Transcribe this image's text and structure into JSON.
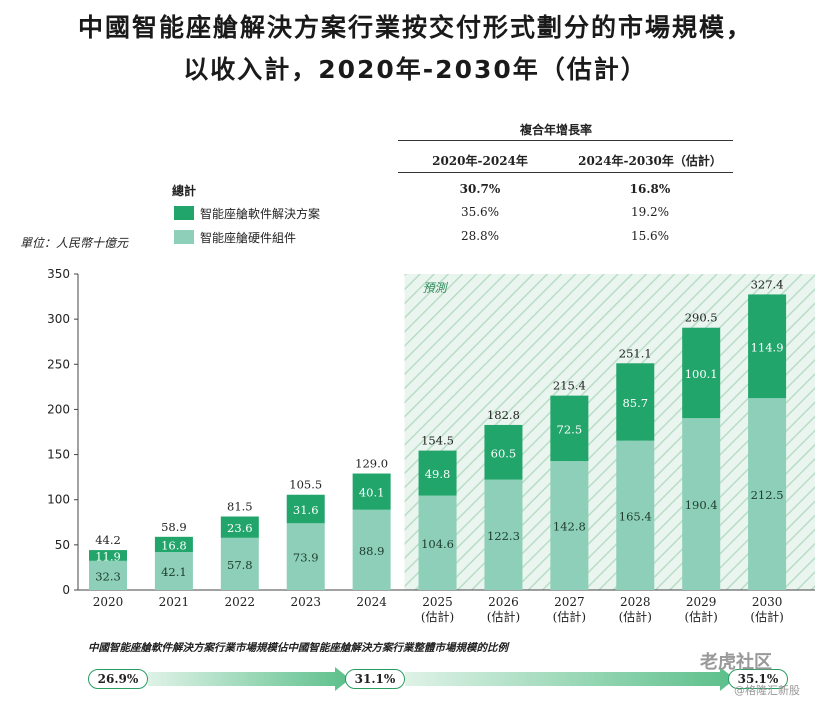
{
  "title_line1": "中國智能座艙解決方案行業按交付形式劃分的市場規模，",
  "title_line2": "以收入計，2020年-2030年（估計）",
  "cagr_table": {
    "header": "複合年增長率",
    "col1": "2020年-2024年",
    "col2": "2024年-2030年（估計）",
    "rows": [
      {
        "label": "總計",
        "v1": "30.7%",
        "v2": "16.8%"
      },
      {
        "label": "智能座艙軟件解決方案",
        "v1": "35.6%",
        "v2": "19.2%"
      },
      {
        "label": "智能座艙硬件組件",
        "v1": "28.8%",
        "v2": "15.6%"
      }
    ]
  },
  "unit_label": "單位：人民幣十億元",
  "forecast_label": "預測",
  "colors": {
    "software": "#21a56b",
    "hardware": "#8dcfb8",
    "forecast_bg": "#e9f5ee",
    "forecast_hatch": "#b9ddc7"
  },
  "chart_data": {
    "type": "bar",
    "stacked": true,
    "categories": [
      "2020",
      "2021",
      "2022",
      "2023",
      "2024",
      "2025\n(估計)",
      "2026\n(估計)",
      "2027\n(估計)",
      "2028\n(估計)",
      "2029\n(估計)",
      "2030\n(估計)"
    ],
    "series": [
      {
        "name": "智能座艙硬件組件",
        "values": [
          32.3,
          42.1,
          57.8,
          73.9,
          88.9,
          104.6,
          122.3,
          142.8,
          165.4,
          190.4,
          212.5
        ]
      },
      {
        "name": "智能座艙軟件解決方案",
        "values": [
          11.9,
          16.8,
          23.6,
          31.6,
          40.1,
          49.8,
          60.5,
          72.5,
          85.7,
          100.1,
          114.9
        ]
      }
    ],
    "totals": [
      44.2,
      58.9,
      81.5,
      105.5,
      129.0,
      154.5,
      182.8,
      215.4,
      251.1,
      290.5,
      327.4
    ],
    "total_labels": [
      "44.2",
      "58.9",
      "81.5",
      "105.5",
      "129.0",
      "154.5",
      "182.8",
      "215.4",
      "251.1",
      "290.5",
      "327.4"
    ],
    "hardware_labels": [
      "32.3",
      "42.1",
      "57.8",
      "73.9",
      "88.9",
      "104.6",
      "122.3",
      "142.8",
      "165.4",
      "190.4",
      "212.5"
    ],
    "software_labels": [
      "11.9",
      "16.8",
      "23.6",
      "31.6",
      "40.1",
      "49.8",
      "60.5",
      "72.5",
      "85.7",
      "100.1",
      "114.9"
    ],
    "ylim": [
      0,
      350
    ],
    "yticks": [
      0,
      50,
      100,
      150,
      200,
      250,
      300,
      350
    ],
    "forecast_from_index": 5
  },
  "ratio": {
    "title": "中國智能座艙軟件解決方案行業市場規模佔中國智能座艙解決方案行業整體市場規模的比例",
    "values": [
      "26.9%",
      "31.1%",
      "35.1%"
    ]
  },
  "watermark": {
    "line1": "老虎社区",
    "line2": "@格隆汇新股"
  }
}
